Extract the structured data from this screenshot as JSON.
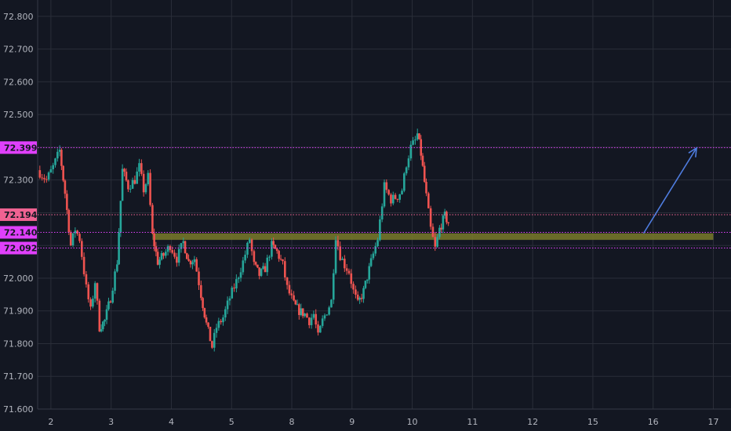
{
  "chart_data": {
    "type": "candlestick",
    "ylim": [
      71.6,
      72.85
    ],
    "xlim": [
      1.7,
      17.4
    ],
    "grid": true,
    "y_ticks": [
      "71.600",
      "71.700",
      "71.800",
      "71.900",
      "72.000",
      "72.100",
      "72.200",
      "72.300",
      "72.400",
      "72.500",
      "72.600",
      "72.700",
      "72.800"
    ],
    "x_ticks": [
      "2",
      "3",
      "4",
      "5",
      "8",
      "9",
      "10",
      "11",
      "12",
      "15",
      "16",
      "17"
    ],
    "price_lines": [
      {
        "value": 72.399,
        "label": "72.399",
        "color": "#e040fb",
        "label_bg": "#e040fb"
      },
      {
        "value": 72.194,
        "label": "72.194",
        "color": "#f06292",
        "label_bg": "#f06292"
      },
      {
        "value": 72.14,
        "label": "72.140",
        "color": "#e040fb",
        "label_bg": "#e040fb"
      },
      {
        "value": 72.092,
        "label": "72.092",
        "color": "#e040fb",
        "label_bg": "#e040fb"
      }
    ],
    "zone": {
      "x_start": 4.3,
      "x_end": 17.0,
      "y_low": 72.117,
      "y_high": 72.137,
      "color": "#7a7a2a"
    },
    "arrow": {
      "x_start": 15.42,
      "y_start": 72.137,
      "x_end": 16.62,
      "y_end": 72.398,
      "color": "#4f7de0"
    },
    "path": [
      [
        1.7,
        72.33
      ],
      [
        1.9,
        72.3
      ],
      [
        2.05,
        72.34
      ],
      [
        2.2,
        72.39
      ],
      [
        2.32,
        72.26
      ],
      [
        2.45,
        72.1
      ],
      [
        2.55,
        72.15
      ],
      [
        2.65,
        72.12
      ],
      [
        2.8,
        71.97
      ],
      [
        2.9,
        71.9
      ],
      [
        3.0,
        71.99
      ],
      [
        3.1,
        71.85
      ],
      [
        3.22,
        71.87
      ],
      [
        3.35,
        71.94
      ],
      [
        3.5,
        72.05
      ],
      [
        3.62,
        72.33
      ],
      [
        3.75,
        72.28
      ],
      [
        3.9,
        72.3
      ],
      [
        4.0,
        72.34
      ],
      [
        4.1,
        72.27
      ],
      [
        4.2,
        72.31
      ],
      [
        4.3,
        72.13
      ],
      [
        4.42,
        72.05
      ],
      [
        4.55,
        72.07
      ],
      [
        4.7,
        72.1
      ],
      [
        4.85,
        72.06
      ],
      [
        5.0,
        72.11
      ],
      [
        5.12,
        72.05
      ],
      [
        5.25,
        72.06
      ],
      [
        5.4,
        71.95
      ],
      [
        5.52,
        71.86
      ],
      [
        5.65,
        71.79
      ],
      [
        5.75,
        71.85
      ],
      [
        5.9,
        71.88
      ],
      [
        6.05,
        71.94
      ],
      [
        6.2,
        71.99
      ],
      [
        6.35,
        72.05
      ],
      [
        6.5,
        72.12
      ],
      [
        6.6,
        72.04
      ],
      [
        6.72,
        72.01
      ],
      [
        6.85,
        72.03
      ],
      [
        7.0,
        72.1
      ],
      [
        7.12,
        72.08
      ],
      [
        7.25,
        72.04
      ],
      [
        7.35,
        71.97
      ],
      [
        7.5,
        71.92
      ],
      [
        7.62,
        71.9
      ],
      [
        7.75,
        71.89
      ],
      [
        7.85,
        71.87
      ],
      [
        7.95,
        71.89
      ],
      [
        8.05,
        71.82
      ],
      [
        8.15,
        71.87
      ],
      [
        8.25,
        71.9
      ],
      [
        8.35,
        71.93
      ],
      [
        8.45,
        72.13
      ],
      [
        8.55,
        72.07
      ],
      [
        8.65,
        72.04
      ],
      [
        8.75,
        72.02
      ],
      [
        8.85,
        71.96
      ],
      [
        8.95,
        71.92
      ],
      [
        9.08,
        71.96
      ],
      [
        9.25,
        72.05
      ],
      [
        9.4,
        72.12
      ],
      [
        9.55,
        72.28
      ],
      [
        9.7,
        72.24
      ],
      [
        9.85,
        72.25
      ],
      [
        9.95,
        72.27
      ],
      [
        10.05,
        72.35
      ],
      [
        10.15,
        72.4
      ],
      [
        10.25,
        72.42
      ],
      [
        10.3,
        72.44
      ],
      [
        10.38,
        72.38
      ],
      [
        10.5,
        72.25
      ],
      [
        10.6,
        72.15
      ],
      [
        10.7,
        72.09
      ],
      [
        10.8,
        72.15
      ],
      [
        10.92,
        72.19
      ],
      [
        11.0,
        72.17
      ]
    ]
  }
}
